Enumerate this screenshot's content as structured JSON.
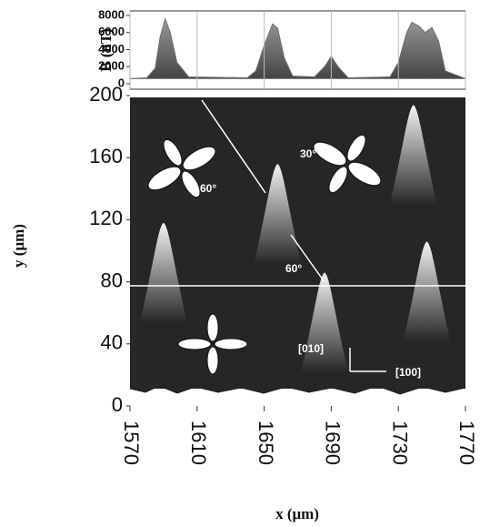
{
  "chart_data": [
    {
      "type": "line",
      "y_label": "B (nT)",
      "x": [
        1570,
        1580,
        1585,
        1588,
        1591,
        1594,
        1598,
        1605,
        1640,
        1645,
        1650,
        1655,
        1658,
        1662,
        1667,
        1680,
        1686,
        1690,
        1694,
        1700,
        1725,
        1730,
        1735,
        1738,
        1742,
        1746,
        1750,
        1754,
        1758,
        1770
      ],
      "series": [
        {
          "color": "#6e6e6e",
          "values": [
            600,
            700,
            1800,
            5500,
            7600,
            6000,
            2500,
            800,
            700,
            1500,
            4500,
            7000,
            6500,
            3000,
            900,
            800,
            2000,
            3200,
            2000,
            700,
            800,
            2500,
            6000,
            7200,
            6800,
            6000,
            6600,
            5000,
            1500,
            600
          ]
        }
      ],
      "xlim": [
        1570,
        1770
      ],
      "ylim": [
        0,
        8000
      ],
      "yticks": [
        0,
        2000,
        4000,
        6000,
        8000
      ]
    },
    {
      "type": "scatter",
      "x_label": "x (μm)",
      "y_label": "y (μm)",
      "x": [
        1590,
        1658,
        1686,
        1739,
        1747
      ],
      "series": [
        {
          "color": "#ffffff",
          "values": [
            118,
            156,
            86,
            194,
            106
          ]
        }
      ],
      "xlim": [
        1570,
        1770
      ],
      "ylim": [
        0,
        200
      ],
      "xticks": [
        1570,
        1610,
        1650,
        1690,
        1730,
        1770
      ],
      "yticks": [
        0,
        40,
        80,
        120,
        160,
        200
      ],
      "annotations": [
        "60°",
        "30°",
        "60°",
        "[010]",
        "[100]"
      ]
    }
  ]
}
